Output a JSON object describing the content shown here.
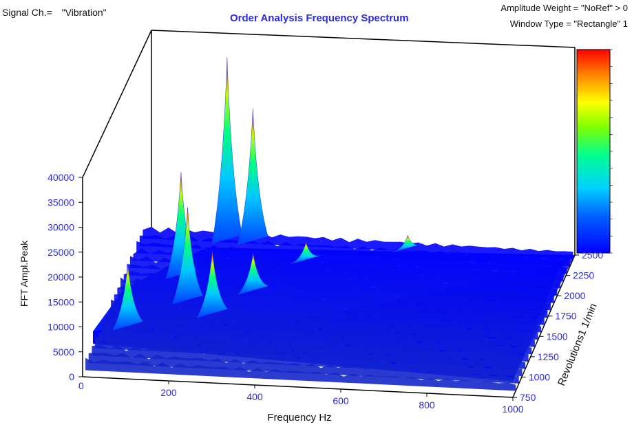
{
  "header": {
    "signal_label": "Signal Ch.=",
    "signal_value": "\"Vibration\"",
    "title": "Order Analysis Frequency Spectrum",
    "amp_weight_line": "Amplitude Weight = \"NoRef\"  >  0",
    "window_type_line": "Window Type = \"Rectangle\"  1"
  },
  "colors": {
    "accent": "#2a2ae0",
    "surface_base": "#0000ff",
    "peak": "#ff0000"
  },
  "chart_data": {
    "type": "surface",
    "title": "Order Analysis Frequency Spectrum",
    "xlabel": "Frequency  Hz",
    "ylabel": "Revolutions1   1/min",
    "zlabel": "FFT Ampl.Peak",
    "xlim": [
      0,
      1000
    ],
    "ylim": [
      750,
      2500
    ],
    "zlim": [
      0,
      40000
    ],
    "x_ticks": [
      "200",
      "400",
      "600",
      "800",
      "1000"
    ],
    "y_ticks": [
      "750",
      "1000",
      "1250",
      "1500",
      "1750",
      "2000",
      "2250",
      "2500"
    ],
    "z_ticks": [
      "0",
      "5000",
      "10000",
      "15000",
      "20000",
      "25000",
      "30000",
      "35000",
      "40000"
    ],
    "colorbar": [
      "#0000ff",
      "#00c8ff",
      "#00ff80",
      "#c8ff00",
      "#ffff00",
      "#ff8000",
      "#ff0000"
    ],
    "grid": false,
    "peaks": [
      {
        "freq": 200,
        "rpm": 2400,
        "amp": 38000
      },
      {
        "freq": 260,
        "rpm": 2400,
        "amp": 28000
      },
      {
        "freq": 130,
        "rpm": 1950,
        "amp": 22000
      },
      {
        "freq": 170,
        "rpm": 1650,
        "amp": 20000
      },
      {
        "freq": 240,
        "rpm": 1500,
        "amp": 14000
      },
      {
        "freq": 60,
        "rpm": 1300,
        "amp": 14000
      },
      {
        "freq": 310,
        "rpm": 1800,
        "amp": 9000
      },
      {
        "freq": 400,
        "rpm": 2200,
        "amp": 5000
      },
      {
        "freq": 620,
        "rpm": 2400,
        "amp": 4000
      }
    ]
  }
}
